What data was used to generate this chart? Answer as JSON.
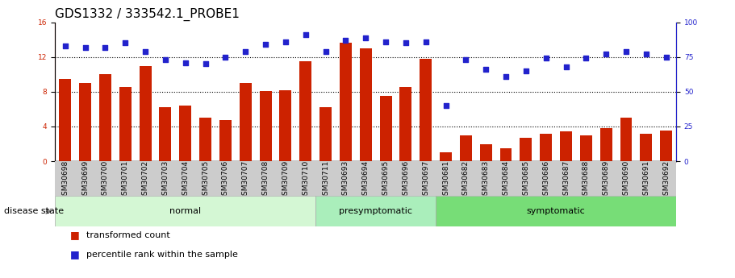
{
  "title": "GDS1332 / 333542.1_PROBE1",
  "samples": [
    "GSM30698",
    "GSM30699",
    "GSM30700",
    "GSM30701",
    "GSM30702",
    "GSM30703",
    "GSM30704",
    "GSM30705",
    "GSM30706",
    "GSM30707",
    "GSM30708",
    "GSM30709",
    "GSM30710",
    "GSM30711",
    "GSM30693",
    "GSM30694",
    "GSM30695",
    "GSM30696",
    "GSM30697",
    "GSM30681",
    "GSM30682",
    "GSM30683",
    "GSM30684",
    "GSM30685",
    "GSM30686",
    "GSM30687",
    "GSM30688",
    "GSM30689",
    "GSM30690",
    "GSM30691",
    "GSM30692"
  ],
  "bar_values": [
    9.5,
    9.0,
    10.0,
    8.5,
    11.0,
    6.2,
    6.4,
    5.0,
    4.7,
    9.0,
    8.1,
    8.2,
    11.5,
    6.2,
    13.6,
    13.0,
    7.5,
    8.5,
    11.8,
    1.0,
    3.0,
    2.0,
    1.5,
    2.7,
    3.2,
    3.4,
    3.0,
    3.8,
    5.0,
    3.2,
    3.5
  ],
  "pct_values": [
    83,
    82,
    82,
    85,
    79,
    73,
    71,
    70,
    75,
    79,
    84,
    86,
    91,
    79,
    87,
    89,
    86,
    85,
    86,
    40,
    73,
    66,
    61,
    65,
    74,
    68,
    74,
    77,
    79,
    77,
    75
  ],
  "groups": [
    {
      "label": "normal",
      "start": 0,
      "end": 13
    },
    {
      "label": "presymptomatic",
      "start": 13,
      "end": 19
    },
    {
      "label": "symptomatic",
      "start": 19,
      "end": 31
    }
  ],
  "group_colors": [
    "#d4f7d4",
    "#aaeebb",
    "#77dd77"
  ],
  "ylim_left": [
    0,
    16
  ],
  "ylim_right": [
    0,
    100
  ],
  "yticks_left": [
    0,
    4,
    8,
    12,
    16
  ],
  "yticks_right": [
    0,
    25,
    50,
    75,
    100
  ],
  "bar_color": "#cc2200",
  "dot_color": "#2222cc",
  "bg_color": "#ffffff",
  "tick_bg_color": "#cccccc",
  "legend_bar_label": "transformed count",
  "legend_dot_label": "percentile rank within the sample",
  "disease_state_label": "disease state",
  "title_fontsize": 11,
  "tick_fontsize": 6.5,
  "label_fontsize": 8,
  "group_label_fontsize": 8
}
